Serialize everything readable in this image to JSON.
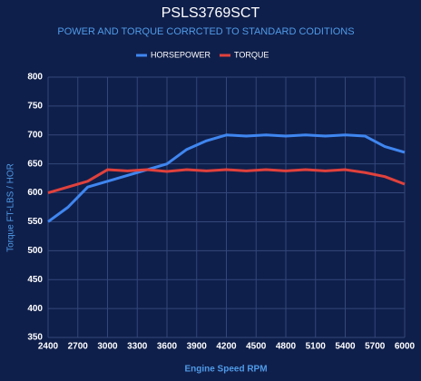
{
  "chart_data": {
    "type": "line",
    "title": "PSLS3769SCT",
    "subtitle": "POWER AND TORQUE CORRCTED TO STANDARD CODITIONS",
    "x_label": "Engine Speed RPM",
    "y_label": "Torque FT-LBS / HOR",
    "x": [
      2400,
      2600,
      2800,
      3000,
      3200,
      3400,
      3600,
      3800,
      4000,
      4200,
      4400,
      4600,
      4800,
      5000,
      5200,
      5400,
      5600,
      5800,
      6000
    ],
    "series": [
      {
        "name": "HORSEPOWER",
        "color": "#3f86f0",
        "values": [
          550,
          575,
          610,
          620,
          630,
          640,
          650,
          675,
          690,
          700,
          698,
          700,
          698,
          700,
          698,
          700,
          698,
          680,
          670
        ]
      },
      {
        "name": "TORQUE",
        "color": "#e0413c",
        "values": [
          600,
          610,
          620,
          640,
          638,
          640,
          637,
          640,
          638,
          640,
          638,
          640,
          638,
          640,
          638,
          640,
          635,
          628,
          615
        ]
      }
    ],
    "xlim": [
      2400,
      6000
    ],
    "xticks": [
      2400,
      2700,
      3000,
      3300,
      3600,
      3900,
      4200,
      4500,
      4800,
      5100,
      5400,
      5700,
      6000
    ],
    "ylim": [
      350,
      800
    ],
    "yticks": [
      350,
      400,
      450,
      500,
      550,
      600,
      650,
      700,
      750,
      800
    ],
    "grid": true,
    "legend": "top"
  }
}
